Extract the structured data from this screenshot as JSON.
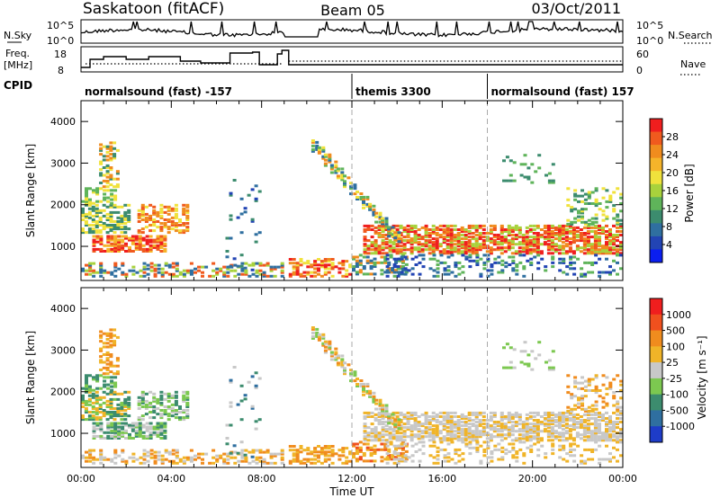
{
  "header": {
    "station": "Saskatoon (fitACF)",
    "beam": "Beam 05",
    "date": "03/Oct/2011"
  },
  "ops": {
    "nsky_label": "N.Sky",
    "nsky_ticks": [
      "10^5",
      "10^0"
    ],
    "nsearch_label": "N.Search",
    "nsearch_ticks": [
      "10^5",
      "10^0"
    ],
    "freq_label": [
      "Freq.",
      "[MHz]"
    ],
    "freq_ticks": [
      "18",
      "8"
    ],
    "nave_label": "Nave",
    "nave_ticks": [
      "60",
      "0"
    ],
    "cpid_label": "CPID",
    "cpid_segments": [
      {
        "label": "normalsound (fast) -157",
        "start": 0,
        "end": 12
      },
      {
        "label": "themis 3300",
        "start": 12,
        "end": 18
      },
      {
        "label": "normalsound (fast) 157",
        "start": 18,
        "end": 24
      }
    ]
  },
  "chart_data": [
    {
      "type": "heatmap",
      "title": "",
      "xlabel": "Time UT",
      "ylabel": "Slant Range [km]",
      "xlim": [
        0,
        24
      ],
      "ylim": [
        180,
        4500
      ],
      "x_ticks": [
        "00:00",
        "04:00",
        "08:00",
        "12:00",
        "16:00",
        "20:00",
        "00:00"
      ],
      "y_ticks": [
        "1000",
        "2000",
        "3000",
        "4000"
      ],
      "colorbar_label": "Power [dB]",
      "colorbar_ticks": [
        "28",
        "24",
        "20",
        "16",
        "12",
        "8",
        "4"
      ],
      "colorbar_colors": [
        "#0a1ef0",
        "#2244b4",
        "#2f6fa0",
        "#3c8c6e",
        "#5fb45a",
        "#a8d23c",
        "#f0e23c",
        "#f5b42a",
        "#f08c1e",
        "#f05a1e",
        "#f01e1e"
      ]
    },
    {
      "type": "heatmap",
      "title": "",
      "xlabel": "Time UT",
      "ylabel": "Slant Range [km]",
      "xlim": [
        0,
        24
      ],
      "ylim": [
        180,
        4500
      ],
      "x_ticks": [
        "00:00",
        "04:00",
        "08:00",
        "12:00",
        "16:00",
        "20:00",
        "00:00"
      ],
      "y_ticks": [
        "1000",
        "2000",
        "3000",
        "4000"
      ],
      "colorbar_label": "Velocity [m s⁻¹]",
      "colorbar_ticks": [
        "1000",
        "500",
        "100",
        "25",
        "-25",
        "-100",
        "-500",
        "-1000"
      ],
      "colorbar_colors": [
        "#1e3cc8",
        "#2f6fa0",
        "#3c8c6e",
        "#7cc850",
        "#c8c8c8",
        "#f0b428",
        "#f08c1e",
        "#f0501e",
        "#f01e1e"
      ]
    }
  ]
}
